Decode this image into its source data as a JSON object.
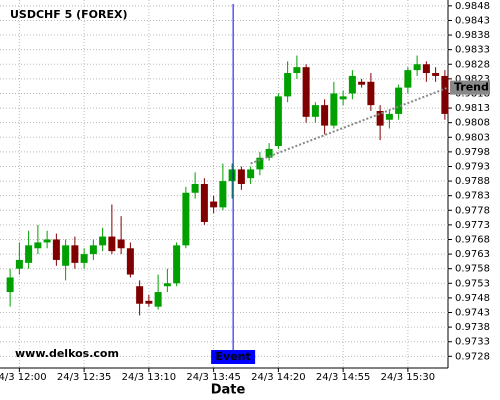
{
  "chart_data": {
    "type": "candlestick",
    "title": "USDCHF 5 (FOREX)",
    "watermark": "www.delkos.com",
    "x_label": "Date",
    "categories": [
      null,
      "24/3 12:00",
      null,
      null,
      null,
      null,
      null,
      null,
      "24/3 12:35",
      null,
      null,
      null,
      null,
      null,
      null,
      "24/3 13:10",
      null,
      null,
      null,
      null,
      null,
      null,
      "24/3 13:45",
      null,
      null,
      null,
      null,
      null,
      null,
      "24/3 14:20",
      null,
      null,
      null,
      null,
      null,
      null,
      "24/3 14:55",
      null,
      null,
      null,
      null,
      null,
      null,
      "24/3 15:30",
      null,
      null,
      null,
      null
    ],
    "open": [
      0.975,
      0.9758,
      0.976,
      0.9765,
      0.9767,
      0.9768,
      0.9759,
      0.9766,
      0.976,
      0.9763,
      0.9766,
      0.9769,
      0.9768,
      0.9765,
      0.9752,
      0.9747,
      0.9745,
      0.9752,
      0.9753,
      0.9766,
      0.9784,
      0.9787,
      0.9781,
      0.9779,
      0.9788,
      0.9792,
      0.9789,
      0.9792,
      0.9796,
      0.98,
      0.9817,
      0.9825,
      0.9827,
      0.981,
      0.9814,
      0.9807,
      0.9816,
      0.9818,
      0.9822,
      0.9822,
      0.9812,
      0.9809,
      0.9811,
      0.982,
      0.9826,
      0.9828,
      0.9825,
      0.9824
    ],
    "high": [
      0.9758,
      0.9767,
      0.9771,
      0.9773,
      0.9771,
      0.977,
      0.9768,
      0.9769,
      0.9765,
      0.9768,
      0.9772,
      0.978,
      0.9776,
      0.9767,
      0.9754,
      0.9749,
      0.9756,
      0.9758,
      0.9767,
      0.9786,
      0.9791,
      0.9789,
      0.9783,
      0.9794,
      0.9794,
      0.9793,
      0.9793,
      0.9798,
      0.9801,
      0.9818,
      0.9829,
      0.9831,
      0.9828,
      0.9815,
      0.9816,
      0.9822,
      0.9819,
      0.9826,
      0.9823,
      0.9825,
      0.9814,
      0.9812,
      0.9821,
      0.9827,
      0.9831,
      0.9829,
      0.9827,
      0.9826
    ],
    "low": [
      0.9745,
      0.9756,
      0.9758,
      0.9763,
      0.9765,
      0.9759,
      0.9754,
      0.9758,
      0.9758,
      0.9761,
      0.9764,
      0.9763,
      0.9763,
      0.9755,
      0.9742,
      0.9745,
      0.9744,
      0.975,
      0.9752,
      0.9765,
      0.9782,
      0.9773,
      0.9777,
      0.9778,
      0.9782,
      0.9785,
      0.9787,
      0.979,
      0.9795,
      0.9799,
      0.9815,
      0.9823,
      0.9808,
      0.9808,
      0.9804,
      0.9806,
      0.9814,
      0.9816,
      0.982,
      0.9812,
      0.9802,
      0.9806,
      0.9809,
      0.9818,
      0.9824,
      0.9822,
      0.9822,
      0.9809
    ],
    "close": [
      0.9755,
      0.9761,
      0.9766,
      0.9767,
      0.9768,
      0.9761,
      0.9766,
      0.976,
      0.9763,
      0.9766,
      0.9769,
      0.9764,
      0.9765,
      0.9756,
      0.9746,
      0.9746,
      0.975,
      0.9753,
      0.9766,
      0.9784,
      0.9787,
      0.9774,
      0.9779,
      0.9788,
      0.9792,
      0.9787,
      0.9792,
      0.9796,
      0.9799,
      0.9817,
      0.9825,
      0.9827,
      0.981,
      0.9814,
      0.9807,
      0.9818,
      0.9817,
      0.9824,
      0.9821,
      0.9814,
      0.9807,
      0.9811,
      0.982,
      0.9826,
      0.9828,
      0.9825,
      0.9824,
      0.9811
    ],
    "up_color": "#00a000",
    "down_color": "#800000",
    "ylim": [
      0.9724,
      0.985
    ],
    "yticks": [
      0.9728,
      0.9733,
      0.9738,
      0.9743,
      0.9748,
      0.9753,
      0.9758,
      0.9763,
      0.9768,
      0.9773,
      0.9778,
      0.9783,
      0.9788,
      0.9793,
      0.9798,
      0.9803,
      0.9808,
      0.9813,
      0.9818,
      0.9823,
      0.9828,
      0.9833,
      0.9838,
      0.9843,
      0.9848
    ],
    "grid": true,
    "event": {
      "label": "Event",
      "index": 24,
      "color": "#0000ff"
    },
    "trend": {
      "label": "Trend",
      "start_index": 26,
      "start_value": 0.9794,
      "end_index": 47,
      "end_value": 0.982,
      "color": "#888888"
    }
  }
}
